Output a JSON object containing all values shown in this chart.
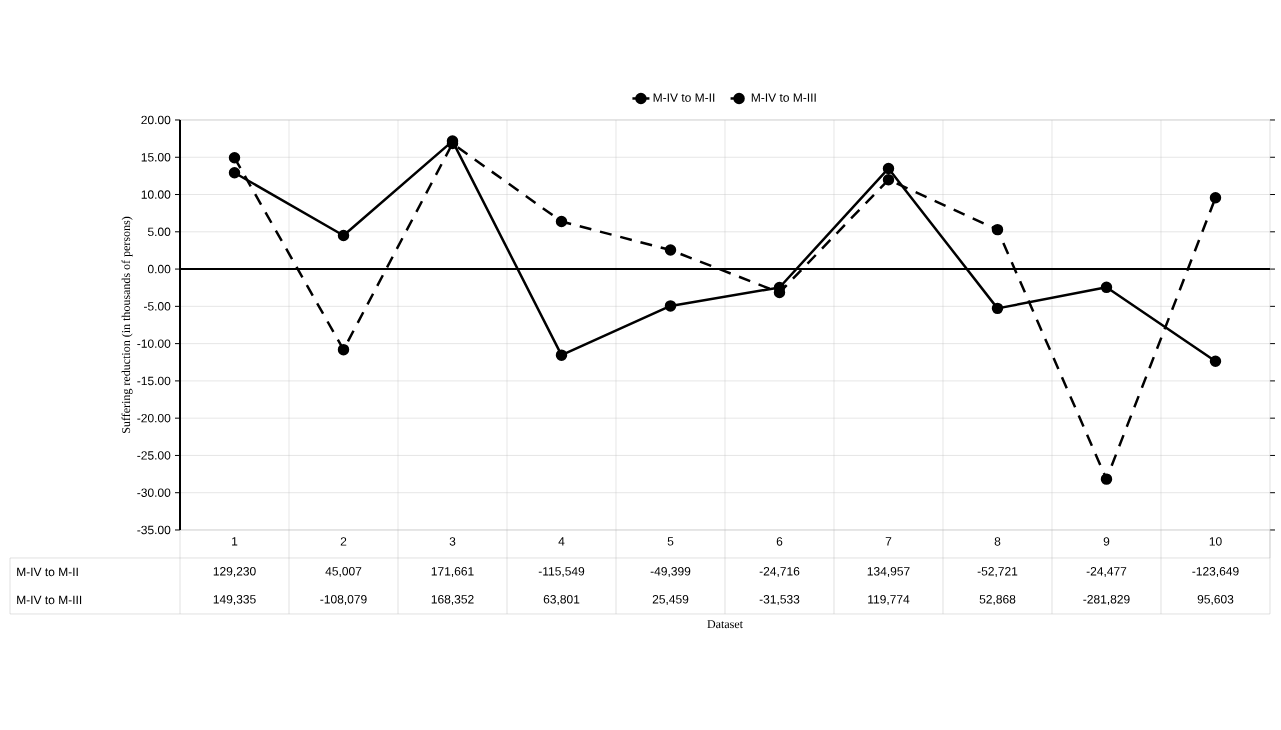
{
  "chart_data": {
    "type": "line",
    "ylabel": "Suffering reduction (in thousands of persons)",
    "categories": [
      "1",
      "2",
      "3",
      "4",
      "5",
      "6",
      "7",
      "8",
      "9",
      "10"
    ],
    "series": [
      {
        "name": "M-IV to M-II",
        "color": "#000000",
        "line_style": "solid",
        "values": [
          12.92,
          4.5,
          17.17,
          -11.55,
          -4.94,
          -2.47,
          13.5,
          -5.27,
          -2.45,
          -12.36
        ]
      },
      {
        "name": "M-IV to M-III",
        "color": "#000000",
        "line_style": "dashed",
        "values": [
          14.93,
          -10.81,
          16.84,
          6.38,
          2.55,
          -3.15,
          11.98,
          5.29,
          -28.18,
          9.56
        ]
      }
    ],
    "annotations": [
      "129,230",
      "45,007",
      "171,661",
      "-115,549",
      "-49,399",
      "-24,716",
      "134,957",
      "-52,721",
      "-24,477",
      "-123,649",
      "149,335",
      "-108,079",
      "168,352",
      "63,801",
      "25,459",
      "-31,533",
      "119,774",
      "52,868",
      "-281,829",
      "95,603",
      "Dataset"
    ],
    "ylim": [
      -35,
      20
    ],
    "yticks": [
      {
        "value": -35,
        "label": "-35.00"
      },
      {
        "value": -30,
        "label": "-30.00"
      },
      {
        "value": -25,
        "label": "-25.00"
      },
      {
        "value": -20,
        "label": "-20.00"
      },
      {
        "value": -15,
        "label": "-15.00"
      },
      {
        "value": -10,
        "label": "-10.00"
      },
      {
        "value": -5,
        "label": "-5.00"
      },
      {
        "value": 0,
        "label": "0.00"
      },
      {
        "value": 5,
        "label": "5.00"
      },
      {
        "value": 10,
        "label": "10.00"
      },
      {
        "value": 15,
        "label": "15.00"
      },
      {
        "value": 20,
        "label": "20.00"
      }
    ],
    "grid": true,
    "legend": "top",
    "marker": "circle"
  }
}
